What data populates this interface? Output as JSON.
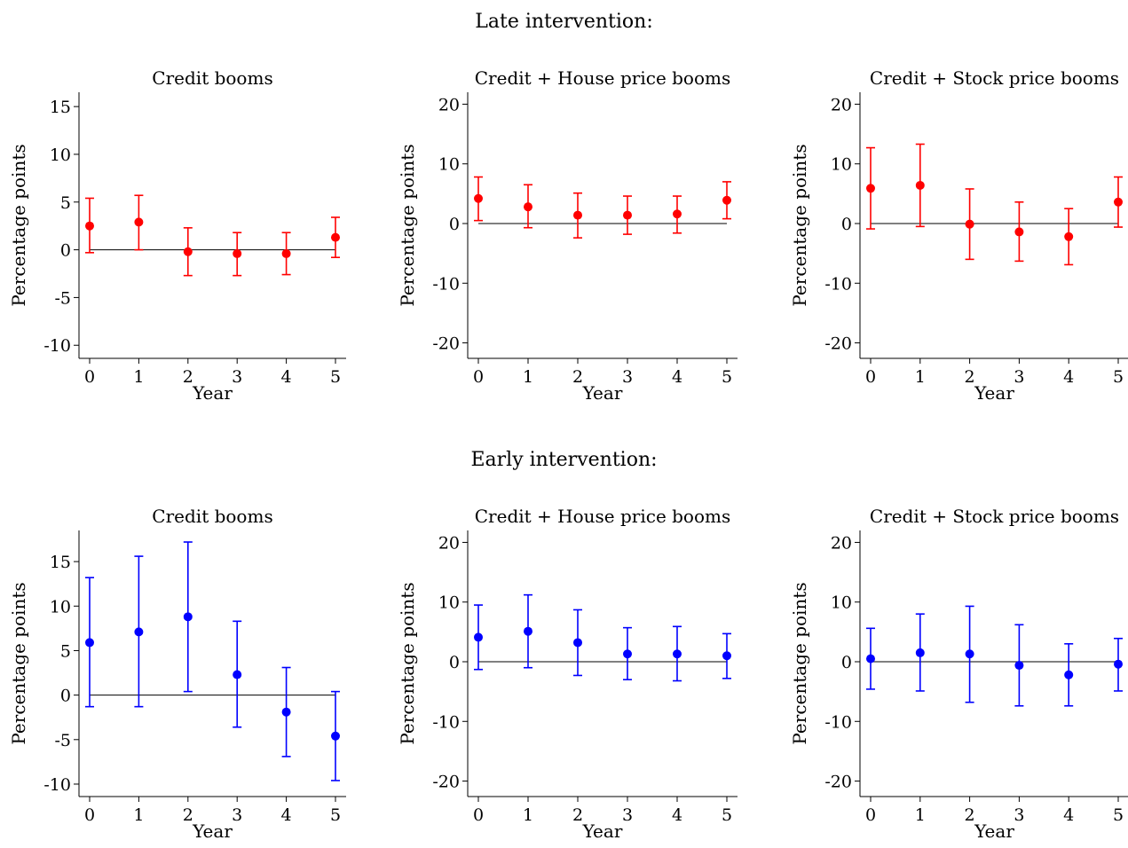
{
  "sections": {
    "late_title": "Late intervention:",
    "early_title": "Early intervention:"
  },
  "colors": {
    "late": "#ff0000",
    "early": "#0000ff",
    "axis": "#000000"
  },
  "chart_data": [
    {
      "type": "scatter",
      "error_bars": true,
      "group": "late",
      "title": "Credit booms",
      "xlabel": "Year",
      "ylabel": "Percentage points",
      "x": [
        0,
        1,
        2,
        3,
        4,
        5
      ],
      "xticks": [
        0,
        1,
        2,
        3,
        4,
        5
      ],
      "yticks": [
        -10,
        -5,
        0,
        5,
        10,
        15
      ],
      "ylim": [
        -11,
        16.5
      ],
      "y": [
        2.5,
        2.9,
        -0.2,
        -0.4,
        -0.4,
        1.3
      ],
      "lower": [
        -0.3,
        0.0,
        -2.7,
        -2.7,
        -2.6,
        -0.8
      ],
      "upper": [
        5.4,
        5.7,
        2.3,
        1.8,
        1.8,
        3.4
      ]
    },
    {
      "type": "scatter",
      "error_bars": true,
      "group": "late",
      "title": "Credit + House price booms",
      "xlabel": "Year",
      "ylabel": "Percentage points",
      "x": [
        0,
        1,
        2,
        3,
        4,
        5
      ],
      "xticks": [
        0,
        1,
        2,
        3,
        4,
        5
      ],
      "yticks": [
        -20,
        -10,
        0,
        10,
        20
      ],
      "ylim": [
        -22,
        22
      ],
      "y": [
        4.2,
        2.8,
        1.4,
        1.4,
        1.6,
        3.9
      ],
      "lower": [
        0.5,
        -0.7,
        -2.4,
        -1.8,
        -1.6,
        0.8
      ],
      "upper": [
        7.8,
        6.5,
        5.1,
        4.6,
        4.6,
        7.0
      ]
    },
    {
      "type": "scatter",
      "error_bars": true,
      "group": "late",
      "title": "Credit + Stock price booms",
      "xlabel": "Year",
      "ylabel": "Percentage points",
      "x": [
        0,
        1,
        2,
        3,
        4,
        5
      ],
      "xticks": [
        0,
        1,
        2,
        3,
        4,
        5
      ],
      "yticks": [
        -20,
        -10,
        0,
        10,
        20
      ],
      "ylim": [
        -22,
        22
      ],
      "y": [
        5.9,
        6.4,
        -0.1,
        -1.4,
        -2.2,
        3.6
      ],
      "lower": [
        -0.9,
        -0.5,
        -6.0,
        -6.3,
        -6.9,
        -0.6
      ],
      "upper": [
        12.7,
        13.3,
        5.8,
        3.6,
        2.5,
        7.8
      ]
    },
    {
      "type": "scatter",
      "error_bars": true,
      "group": "early",
      "title": "Credit booms",
      "xlabel": "Year",
      "ylabel": "Percentage points",
      "x": [
        0,
        1,
        2,
        3,
        4,
        5
      ],
      "xticks": [
        0,
        1,
        2,
        3,
        4,
        5
      ],
      "yticks": [
        -10,
        -5,
        0,
        5,
        10,
        15
      ],
      "ylim": [
        -11,
        18.5
      ],
      "y": [
        5.9,
        7.1,
        8.8,
        2.3,
        -1.9,
        -4.6
      ],
      "lower": [
        -1.3,
        -1.3,
        0.4,
        -3.6,
        -6.9,
        -9.6
      ],
      "upper": [
        13.2,
        15.6,
        17.2,
        8.3,
        3.1,
        0.4
      ]
    },
    {
      "type": "scatter",
      "error_bars": true,
      "group": "early",
      "title": "Credit + House price booms",
      "xlabel": "Year",
      "ylabel": "Percentage points",
      "x": [
        0,
        1,
        2,
        3,
        4,
        5
      ],
      "xticks": [
        0,
        1,
        2,
        3,
        4,
        5
      ],
      "yticks": [
        -20,
        -10,
        0,
        10,
        20
      ],
      "ylim": [
        -22,
        22
      ],
      "y": [
        4.1,
        5.1,
        3.2,
        1.3,
        1.3,
        1.0
      ],
      "lower": [
        -1.3,
        -1.0,
        -2.3,
        -3.0,
        -3.2,
        -2.8
      ],
      "upper": [
        9.5,
        11.2,
        8.7,
        5.7,
        5.9,
        4.7
      ]
    },
    {
      "type": "scatter",
      "error_bars": true,
      "group": "early",
      "title": "Credit + Stock price booms",
      "xlabel": "Year",
      "ylabel": "Percentage points",
      "x": [
        0,
        1,
        2,
        3,
        4,
        5
      ],
      "xticks": [
        0,
        1,
        2,
        3,
        4,
        5
      ],
      "yticks": [
        -20,
        -10,
        0,
        10,
        20
      ],
      "ylim": [
        -22,
        22
      ],
      "y": [
        0.5,
        1.5,
        1.3,
        -0.6,
        -2.2,
        -0.4
      ],
      "lower": [
        -4.6,
        -4.9,
        -6.8,
        -7.4,
        -7.4,
        -4.9
      ],
      "upper": [
        5.6,
        8.0,
        9.3,
        6.2,
        3.0,
        3.9
      ]
    }
  ]
}
